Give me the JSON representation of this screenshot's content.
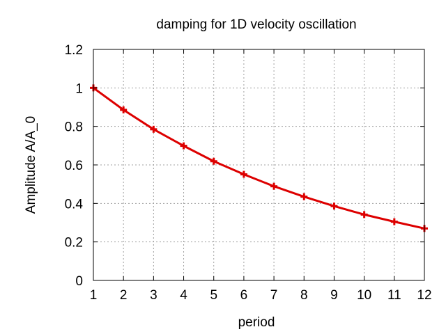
{
  "chart_data": {
    "type": "line",
    "title": "damping for 1D velocity oscillation",
    "xlabel": "period",
    "ylabel": "Amplitude A/A_0",
    "xlim": [
      1,
      12
    ],
    "ylim": [
      0,
      1.2
    ],
    "xticks": [
      "1",
      "2",
      "3",
      "4",
      "5",
      "6",
      "7",
      "8",
      "9",
      "10",
      "11",
      "12"
    ],
    "yticks": [
      "0",
      "0.2",
      "0.4",
      "0.6",
      "0.8",
      "1",
      "1.2"
    ],
    "grid": true,
    "legend": "none",
    "x": [
      1,
      2,
      3,
      4,
      5,
      6,
      7,
      8,
      9,
      10,
      11,
      12
    ],
    "series": [
      {
        "values": [
          1.0,
          0.886,
          0.785,
          0.699,
          0.619,
          0.551,
          0.489,
          0.435,
          0.386,
          0.342,
          0.305,
          0.27
        ],
        "color": "#dd0000",
        "marker": "plus"
      }
    ]
  }
}
